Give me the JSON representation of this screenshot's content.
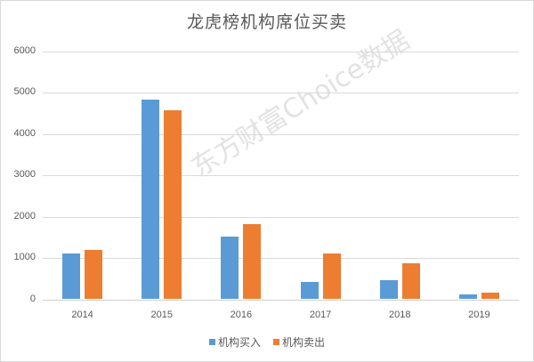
{
  "chart_data": {
    "type": "bar",
    "title": "龙虎榜机构席位买卖",
    "categories": [
      "2014",
      "2015",
      "2016",
      "2017",
      "2018",
      "2019"
    ],
    "series": [
      {
        "name": "机构买入",
        "color": "#5B9BD5",
        "values": [
          1100,
          4830,
          1510,
          420,
          460,
          110
        ]
      },
      {
        "name": "机构卖出",
        "color": "#ED7D31",
        "values": [
          1200,
          4580,
          1810,
          1110,
          870,
          170
        ]
      }
    ],
    "xlabel": "",
    "ylabel": "",
    "ylim": [
      0,
      6000
    ],
    "yticks": [
      "0",
      "1000",
      "2000",
      "3000",
      "4000",
      "5000",
      "6000"
    ],
    "grid": true,
    "legend_position": "bottom"
  },
  "watermark": "东方财富Choice数据"
}
